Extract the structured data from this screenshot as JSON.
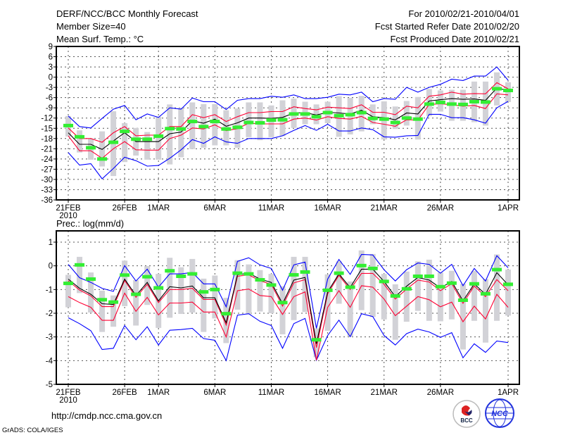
{
  "header": {
    "title": "DERF/NCC/BCC Monthly Forecast",
    "member_size": "Member Size=40",
    "variable": "Mean Surf. Temp.: °C",
    "period": "For 2010/02/21-2010/04/01",
    "start_date": "Fcst Started Refer Date 2010/02/20",
    "produced_date": "Fcst Produced Date 2010/02/21"
  },
  "footer": {
    "url": "http://cmdp.ncc.cma.gov.cn",
    "credit": "GrADS: COLA/IGES"
  },
  "logos": {
    "bcc": "BCC",
    "ncc": "NCC"
  },
  "colors": {
    "range_bar": "#d2d2d7",
    "observed": "#33ee33",
    "extreme": "#0000ff",
    "spread": "#ff0033",
    "mean": "#000000"
  },
  "chart_data": [
    {
      "type": "line",
      "title": "Mean Surf. Temp.: °C",
      "ylim": [
        -36,
        9
      ],
      "yticks": [
        "9",
        "6",
        "3",
        "0",
        "-3",
        "-6",
        "-9",
        "-12",
        "-15",
        "-18",
        "-21",
        "-24",
        "-27",
        "-30",
        "-33",
        "-36"
      ],
      "ytick_values": [
        9,
        6,
        3,
        0,
        -3,
        -6,
        -9,
        -12,
        -15,
        -18,
        -21,
        -24,
        -27,
        -30,
        -33,
        -36
      ],
      "xticks": [
        {
          "label": "21FEB",
          "day": 0
        },
        {
          "label": "26FEB",
          "day": 5
        },
        {
          "label": "1MAR",
          "day": 8
        },
        {
          "label": "6MAR",
          "day": 13
        },
        {
          "label": "11MAR",
          "day": 18
        },
        {
          "label": "16MAR",
          "day": 23
        },
        {
          "label": "21MAR",
          "day": 28
        },
        {
          "label": "26MAR",
          "day": 33
        },
        {
          "label": "1APR",
          "day": 39
        }
      ],
      "year_label": "2010",
      "grid": true,
      "series": {
        "mean": [
          -16.3,
          -19.7,
          -19.7,
          -21.2,
          -18.7,
          -16.3,
          -18.9,
          -18.9,
          -18.9,
          -16.6,
          -16.1,
          -12.8,
          -13.5,
          -12.3,
          -14.4,
          -13.4,
          -12.0,
          -12.0,
          -12.1,
          -11.8,
          -10.5,
          -10.4,
          -11.1,
          -10.3,
          -10.5,
          -10.8,
          -9.7,
          -11.6,
          -11.9,
          -12.5,
          -10.5,
          -10.8,
          -7.0,
          -6.6,
          -6.3,
          -6.5,
          -6.4,
          -6.8,
          -3.2,
          -3.9
        ],
        "spread_upper": [
          -14.9,
          -18,
          -18,
          -19.1,
          -16.3,
          -14.5,
          -17.2,
          -17,
          -17,
          -14.5,
          -14.5,
          -11,
          -11.9,
          -11,
          -13,
          -11.6,
          -10.4,
          -10.4,
          -10.1,
          -10.1,
          -8.7,
          -9.2,
          -9.6,
          -8.8,
          -9,
          -9.2,
          -8.1,
          -10.3,
          -10.3,
          -11,
          -8.5,
          -9,
          -5.6,
          -5.2,
          -4.4,
          -5,
          -4.8,
          -4.9,
          -1.6,
          -3.4
        ],
        "spread_lower": [
          -17.2,
          -21.6,
          -21.6,
          -23.8,
          -21,
          -18.9,
          -21.3,
          -21.4,
          -21.4,
          -18,
          -17,
          -14.9,
          -15.2,
          -14,
          -15.7,
          -15.1,
          -13.5,
          -13.7,
          -13.7,
          -13.7,
          -12.3,
          -12,
          -12.6,
          -11.6,
          -12.1,
          -12.3,
          -11.5,
          -13.3,
          -13.8,
          -14.4,
          -12.5,
          -12.6,
          -8,
          -7.8,
          -8.1,
          -8.5,
          -8.3,
          -9.2,
          -4.9,
          -5.2
        ],
        "max": [
          -11.4,
          -14.5,
          -14.9,
          -12.1,
          -9.4,
          -8.3,
          -12.5,
          -10.8,
          -11.8,
          -9,
          -9.4,
          -6.1,
          -7.2,
          -7.2,
          -9.5,
          -6.8,
          -6.3,
          -6.3,
          -5.6,
          -5.9,
          -5.2,
          -6.3,
          -6.3,
          -5.9,
          -5,
          -5.2,
          -4.4,
          -7.2,
          -6.3,
          -6.5,
          -3,
          -4.4,
          -3,
          -2.1,
          -0.6,
          -1,
          0.3,
          0.3,
          3,
          -0.9
        ],
        "min": [
          -22.1,
          -25.8,
          -25.4,
          -29.8,
          -26.8,
          -23.5,
          -24.5,
          -26.1,
          -25.9,
          -23.8,
          -21.3,
          -18.3,
          -19.4,
          -17.5,
          -19,
          -19.4,
          -18,
          -18,
          -18,
          -17.2,
          -15.6,
          -14.2,
          -15.6,
          -13.8,
          -15.8,
          -15.8,
          -14.9,
          -15.4,
          -17.5,
          -17.6,
          -17.2,
          -17.1,
          -10.9,
          -10.9,
          -11.9,
          -11.9,
          -12.5,
          -13.5,
          -9,
          -7.1
        ],
        "range_low": [
          -17.4,
          -22.1,
          -24.2,
          -26.2,
          -29,
          -24.9,
          -23,
          -24.2,
          -24.2,
          -25.6,
          -23.5,
          -21.1,
          -20.7,
          -20,
          -20,
          -20.7,
          -17.6,
          -18.5,
          -17.6,
          -17.3,
          -14.9,
          -13.8,
          -13.8,
          -13.5,
          -17.5,
          -16.8,
          -15.9,
          -13.8,
          -18.3,
          -15.2,
          -14.2,
          -18.3,
          -11.4,
          -10.1,
          -12.8,
          -12.8,
          -13.2,
          -14.2,
          -8.3,
          -7.3
        ],
        "range_high": [
          -11.4,
          -15.6,
          -18,
          -15.9,
          -10,
          -13.5,
          -14.9,
          -16.1,
          -11.6,
          -8,
          -9,
          -7.4,
          -7.9,
          -7.9,
          -9.7,
          -9.2,
          -7.4,
          -7.4,
          -8.3,
          -6.8,
          -6.3,
          -7.2,
          -8,
          -7.2,
          -5.6,
          -6.1,
          -5.5,
          -8,
          -7.1,
          -8.6,
          -7,
          -5.8,
          -3.5,
          -3.9,
          -3.7,
          -3.7,
          -1.3,
          -1.3,
          1.4,
          -1.5
        ],
        "observed": [
          -14.2,
          -17.5,
          -20.7,
          -24,
          -19.1,
          -15.9,
          -18.2,
          -18.2,
          -17.3,
          -15.1,
          -15.2,
          -13,
          -14.5,
          -13,
          -15.2,
          -14.7,
          -13.3,
          -13.4,
          -12.6,
          -12.5,
          -10.8,
          -10.8,
          -11.6,
          -10.4,
          -11.3,
          -11,
          -10.4,
          -12.1,
          -12.3,
          -13.3,
          -12,
          -12.3,
          -7.9,
          -7.4,
          -7.9,
          -8,
          -7.2,
          -7.3,
          -3.4,
          -3.9
        ]
      }
    },
    {
      "type": "line",
      "title": "Prec.: log(mm/d)",
      "ylim": [
        -5,
        1
      ],
      "yticks": [
        "1",
        "0",
        "-1",
        "-2",
        "-3",
        "-4",
        "-5"
      ],
      "ytick_values": [
        1,
        0,
        -1,
        -2,
        -3,
        -4,
        -5
      ],
      "xticks": [
        {
          "label": "21FEB",
          "day": 0
        },
        {
          "label": "26FEB",
          "day": 5
        },
        {
          "label": "1MAR",
          "day": 8
        },
        {
          "label": "6MAR",
          "day": 13
        },
        {
          "label": "11MAR",
          "day": 18
        },
        {
          "label": "16MAR",
          "day": 23
        },
        {
          "label": "21MAR",
          "day": 28
        },
        {
          "label": "26MAR",
          "day": 33
        },
        {
          "label": "1APR",
          "day": 39
        }
      ],
      "year_label": "2010",
      "grid": true,
      "series": {
        "mean": [
          -0.56,
          -0.95,
          -1.2,
          -1.6,
          -1.63,
          -0.56,
          -1.25,
          -0.7,
          -1.48,
          -0.88,
          -0.93,
          -0.85,
          -1.35,
          -1.35,
          -2.4,
          -0.38,
          -0.31,
          -0.56,
          -0.7,
          -1.6,
          -0.6,
          -0.49,
          -3.29,
          -1.1,
          -0.34,
          -0.92,
          -0.14,
          -0.14,
          -0.66,
          -1.3,
          -0.86,
          -0.49,
          -0.6,
          -0.93,
          -0.66,
          -1.48,
          -0.76,
          -1.2,
          -0.29,
          -0.8
        ],
        "spread_upper": [
          -0.63,
          -1.02,
          -1.27,
          -1.72,
          -1.72,
          -0.62,
          -1.33,
          -0.78,
          -1.55,
          -1.0,
          -1.0,
          -0.95,
          -1.42,
          -1.42,
          -2.5,
          -0.44,
          -0.38,
          -0.63,
          -0.78,
          -1.7,
          -0.72,
          -0.58,
          -3.45,
          -1.18,
          -0.4,
          -1.0,
          -0.32,
          -0.32,
          -0.78,
          -1.4,
          -0.98,
          -0.6,
          -0.68,
          -1.05,
          -0.75,
          -1.58,
          -0.85,
          -1.3,
          -0.58,
          -1.05
        ],
        "spread_lower": [
          -1.3,
          -1.55,
          -1.75,
          -2.3,
          -2.3,
          -1.15,
          -1.92,
          -1.33,
          -2.07,
          -1.57,
          -1.57,
          -1.53,
          -1.95,
          -1.95,
          -3,
          -1.05,
          -0.98,
          -1.25,
          -1.3,
          -2.05,
          -1.3,
          -1.1,
          -3.98,
          -1.75,
          -1.05,
          -1.75,
          -0.84,
          -0.9,
          -1.4,
          -2.1,
          -1.7,
          -1.3,
          -1.43,
          -1.73,
          -1.53,
          -2.36,
          -1.7,
          -2.24,
          -1.2,
          -1.75
        ],
        "max": [
          0.06,
          -0.5,
          -0.7,
          -0.95,
          -1.08,
          0.01,
          -0.64,
          -0.14,
          -0.9,
          -0.34,
          -0.34,
          -0.28,
          -0.76,
          -0.76,
          -1.73,
          0.19,
          0.34,
          0.04,
          -0.11,
          -1.03,
          0.04,
          0.16,
          -2.64,
          -0.56,
          0.27,
          -0.36,
          0.48,
          0.46,
          -0.16,
          -0.64,
          -0.16,
          0.12,
          0.06,
          -0.31,
          0.06,
          -0.84,
          -0.11,
          -0.64,
          0.43,
          -0.08
        ],
        "min": [
          -2.19,
          -2.44,
          -2.74,
          -3.53,
          -3.48,
          -2.52,
          -3.12,
          -2.57,
          -3.34,
          -2.72,
          -2.69,
          -2.64,
          -3.07,
          -3.14,
          -4,
          -2.08,
          -2.02,
          -2.34,
          -2.52,
          -3.48,
          -2.44,
          -2.22,
          -3.98,
          -2.94,
          -2.29,
          -2.99,
          -2.02,
          -2.14,
          -2.94,
          -3.34,
          -2.86,
          -2.67,
          -2.79,
          -3.02,
          -2.82,
          -3.88,
          -3.29,
          -3.65,
          -3.17,
          -3.24
        ],
        "range_low": [
          -1.75,
          -1.15,
          -1.97,
          -2.79,
          -2.57,
          -1.7,
          -2.52,
          -1.65,
          -2.62,
          -2.19,
          -2.03,
          -1.97,
          -2.79,
          -2.22,
          -3.26,
          -1.85,
          -2.05,
          -1.93,
          -2,
          -2.89,
          -2.29,
          -1.95,
          -3.86,
          -2.74,
          -1.6,
          -2.99,
          -1.87,
          -2.16,
          -2.26,
          -3.12,
          -2.36,
          -1.9,
          -2.32,
          -2.34,
          -2.26,
          -3.53,
          -2.32,
          -3.24,
          -2.32,
          -2.1
        ],
        "range_high": [
          -0.38,
          0.38,
          -0.28,
          -1.05,
          -1.25,
          0.22,
          -0.6,
          -0.01,
          -0.34,
          0.34,
          -0.06,
          0.29,
          -0.54,
          -0.41,
          -1.35,
          0.24,
          0.06,
          -0.18,
          -0.34,
          -0.86,
          0.38,
          0.38,
          -2.64,
          -0.36,
          0.19,
          -0.66,
          0.65,
          0.5,
          -0.34,
          -0.78,
          -0.24,
          0.19,
          0.26,
          -0.28,
          -0.21,
          -0.76,
          -0.21,
          -0.56,
          0.48,
          -0.16
        ],
        "observed": [
          -0.74,
          0.04,
          -0.56,
          -1.43,
          -1.53,
          -0.39,
          -1.2,
          -0.46,
          -0.93,
          -0.21,
          -0.44,
          -0.34,
          -1.1,
          -1,
          -2.02,
          -0.31,
          -0.34,
          -0.59,
          -0.81,
          -1.55,
          -0.38,
          -0.26,
          -3.12,
          -1.03,
          -0.31,
          -0.9,
          0.01,
          -0.11,
          -0.66,
          -1.27,
          -0.97,
          -0.44,
          -0.44,
          -0.88,
          -0.73,
          -1.45,
          -0.76,
          -1.18,
          -0.16,
          -0.78
        ]
      }
    }
  ]
}
